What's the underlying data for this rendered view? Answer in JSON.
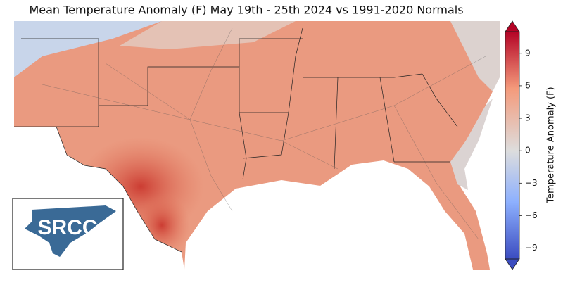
{
  "title": "Mean Temperature Anomaly (F) May 19th - 25th 2024 vs 1991-2020 Normals",
  "logo": {
    "text": "SRCC"
  },
  "colorbar": {
    "label": "Temperature Anomaly (F)",
    "lim": [
      -10,
      11
    ],
    "ticks": [
      {
        "value": -9,
        "label": "−9"
      },
      {
        "value": -6,
        "label": "−6"
      },
      {
        "value": -3,
        "label": "−3"
      },
      0,
      3,
      6,
      9
    ]
  }
}
